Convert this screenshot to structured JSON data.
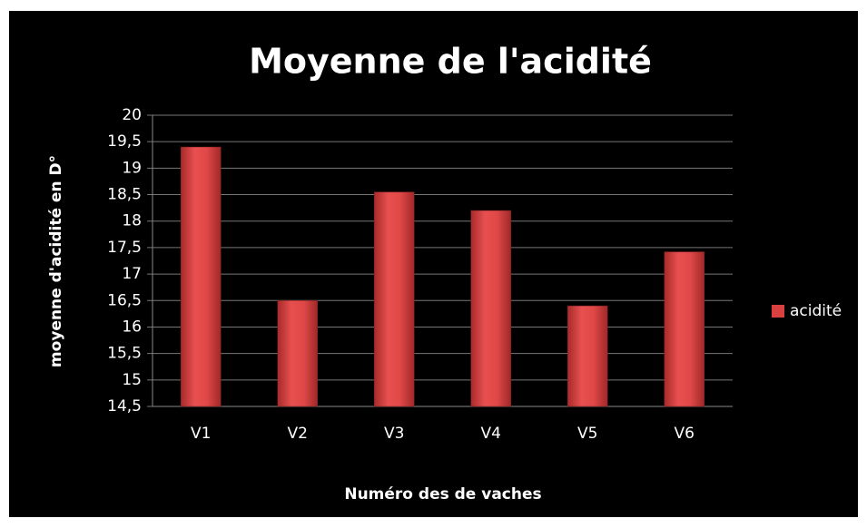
{
  "chart_data": {
    "type": "bar",
    "title": "Moyenne de l'acidité",
    "x_label": "Numéro des de vaches",
    "y_label": "moyenne d'acidité en D°",
    "categories": [
      "V1",
      "V2",
      "V3",
      "V4",
      "V5",
      "V6"
    ],
    "series": [
      {
        "name": "acidité",
        "color": "#d94040",
        "values": [
          19.4,
          16.5,
          18.55,
          18.2,
          16.4,
          17.42
        ]
      }
    ],
    "ylim": [
      14.5,
      20
    ],
    "yticks": [
      {
        "value": 14.5,
        "label": "14,5"
      },
      15,
      {
        "value": 15.5,
        "label": "15,5"
      },
      16,
      {
        "value": 16.5,
        "label": "16,5"
      },
      17,
      {
        "value": 17.5,
        "label": "17,5"
      },
      18,
      {
        "value": 18.5,
        "label": "18,5"
      },
      19,
      {
        "value": 19.5,
        "label": "19,5"
      },
      20
    ],
    "grid": true,
    "legend": "right"
  }
}
